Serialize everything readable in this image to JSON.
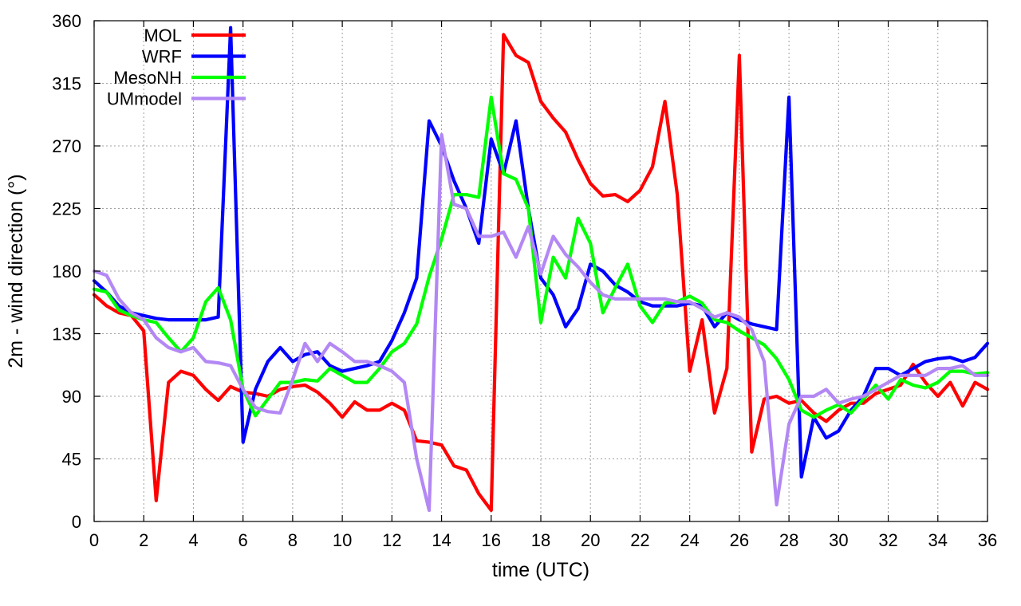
{
  "chart_data": {
    "type": "line",
    "xlabel": "time (UTC)",
    "ylabel": "2m - wind direction (°)",
    "xlim": [
      0,
      36
    ],
    "ylim": [
      0,
      360
    ],
    "xticks": [
      0,
      2,
      4,
      6,
      8,
      10,
      12,
      14,
      16,
      18,
      20,
      22,
      24,
      26,
      28,
      30,
      32,
      34,
      36
    ],
    "yticks": [
      0,
      45,
      90,
      135,
      180,
      225,
      270,
      315,
      360
    ],
    "grid": true,
    "legend_position": "top-left",
    "series": [
      {
        "name": "MOL",
        "color": "#ff0000",
        "x": [
          0,
          0.5,
          1,
          1.5,
          2,
          2.5,
          3,
          3.5,
          4,
          4.5,
          5,
          5.5,
          6,
          6.5,
          7,
          7.5,
          8,
          8.5,
          9,
          9.5,
          10,
          10.5,
          11,
          11.5,
          12,
          12.5,
          13,
          13.5,
          14,
          14.5,
          15,
          15.5,
          16,
          16.5,
          17,
          17.5,
          18,
          18.5,
          19,
          19.5,
          20,
          20.5,
          21,
          21.5,
          22,
          22.5,
          23,
          23.5,
          24,
          24.5,
          25,
          25.5,
          26,
          26.5,
          27,
          27.5,
          28,
          28.5,
          29,
          29.5,
          30,
          30.5,
          31,
          31.5,
          32,
          32.5,
          33,
          33.5,
          34,
          34.5,
          35,
          35.5,
          36
        ],
        "y": [
          163,
          155,
          150,
          148,
          137,
          15,
          100,
          108,
          105,
          95,
          87,
          97,
          93,
          92,
          90,
          95,
          97,
          98,
          93,
          85,
          75,
          86,
          80,
          80,
          85,
          80,
          58,
          57,
          55,
          40,
          37,
          20,
          8,
          350,
          335,
          330,
          302,
          290,
          280,
          260,
          243,
          234,
          235,
          230,
          238,
          255,
          302,
          235,
          108,
          145,
          78,
          110,
          335,
          50,
          88,
          90,
          85,
          87,
          78,
          72,
          80,
          85,
          85,
          92,
          95,
          98,
          113,
          100,
          90,
          100,
          83,
          100,
          95
        ]
      },
      {
        "name": "WRF",
        "color": "#0000ff",
        "x": [
          0,
          0.5,
          1,
          1.5,
          2,
          2.5,
          3,
          3.5,
          4,
          4.5,
          5,
          5.5,
          6,
          6.5,
          7,
          7.5,
          8,
          8.5,
          9,
          9.5,
          10,
          10.5,
          11,
          11.5,
          12,
          12.5,
          13,
          13.5,
          14,
          14.5,
          15,
          15.5,
          16,
          16.5,
          17,
          17.5,
          18,
          18.5,
          19,
          19.5,
          20,
          20.5,
          21,
          21.5,
          22,
          22.5,
          23,
          23.5,
          24,
          24.5,
          25,
          25.5,
          26,
          26.5,
          27,
          27.5,
          28,
          28.5,
          29,
          29.5,
          30,
          30.5,
          31,
          31.5,
          32,
          32.5,
          33,
          33.5,
          34,
          34.5,
          35,
          35.5,
          36
        ],
        "y": [
          173,
          165,
          155,
          150,
          148,
          146,
          145,
          145,
          145,
          145,
          147,
          355,
          57,
          95,
          115,
          125,
          115,
          120,
          122,
          112,
          108,
          110,
          112,
          115,
          130,
          150,
          175,
          288,
          270,
          245,
          225,
          200,
          275,
          250,
          288,
          225,
          175,
          163,
          140,
          153,
          185,
          180,
          170,
          165,
          158,
          155,
          155,
          155,
          157,
          155,
          140,
          150,
          145,
          142,
          140,
          138,
          305,
          32,
          75,
          60,
          65,
          80,
          90,
          110,
          110,
          105,
          110,
          115,
          117,
          118,
          115,
          118,
          128
        ]
      },
      {
        "name": "MesoNH",
        "color": "#00ff00",
        "x": [
          0,
          0.5,
          1,
          1.5,
          2,
          2.5,
          3,
          3.5,
          4,
          4.5,
          5,
          5.5,
          6,
          6.5,
          7,
          7.5,
          8,
          8.5,
          9,
          9.5,
          10,
          10.5,
          11,
          11.5,
          12,
          12.5,
          13,
          13.5,
          14,
          14.5,
          15,
          15.5,
          16,
          16.5,
          17,
          17.5,
          18,
          18.5,
          19,
          19.5,
          20,
          20.5,
          21,
          21.5,
          22,
          22.5,
          23,
          23.5,
          24,
          24.5,
          25,
          25.5,
          26,
          26.5,
          27,
          27.5,
          28,
          28.5,
          29,
          29.5,
          30,
          30.5,
          31,
          31.5,
          32,
          32.5,
          33,
          33.5,
          34,
          34.5,
          35,
          35.5,
          36
        ],
        "y": [
          167,
          165,
          152,
          148,
          145,
          143,
          132,
          122,
          132,
          158,
          168,
          145,
          95,
          76,
          88,
          100,
          100,
          102,
          101,
          110,
          105,
          100,
          100,
          110,
          122,
          128,
          142,
          176,
          203,
          235,
          235,
          233,
          305,
          250,
          246,
          225,
          143,
          190,
          175,
          218,
          200,
          150,
          168,
          185,
          155,
          143,
          157,
          158,
          162,
          157,
          145,
          143,
          137,
          132,
          127,
          117,
          102,
          80,
          75,
          80,
          84,
          78,
          88,
          98,
          88,
          102,
          98,
          96,
          100,
          108,
          108,
          106,
          107
        ]
      },
      {
        "name": "UMmodel",
        "color": "#b388f4",
        "x": [
          0,
          0.5,
          1,
          1.5,
          2,
          2.5,
          3,
          3.5,
          4,
          4.5,
          5,
          5.5,
          6,
          6.5,
          7,
          7.5,
          8,
          8.5,
          9,
          9.5,
          10,
          10.5,
          11,
          11.5,
          12,
          12.5,
          13,
          13.5,
          14,
          14.5,
          15,
          15.5,
          16,
          16.5,
          17,
          17.5,
          18,
          18.5,
          19,
          19.5,
          20,
          20.5,
          21,
          21.5,
          22,
          22.5,
          23,
          23.5,
          24,
          24.5,
          25,
          25.5,
          26,
          26.5,
          27,
          27.5,
          28,
          28.5,
          29,
          29.5,
          30,
          30.5,
          31,
          31.5,
          32,
          32.5,
          33,
          33.5,
          34,
          34.5,
          35,
          35.5,
          36
        ],
        "y": [
          180,
          177,
          160,
          150,
          145,
          132,
          125,
          122,
          125,
          115,
          114,
          112,
          95,
          82,
          79,
          78,
          102,
          128,
          115,
          128,
          122,
          115,
          115,
          112,
          108,
          100,
          45,
          8,
          278,
          228,
          225,
          205,
          205,
          208,
          190,
          212,
          178,
          205,
          192,
          183,
          172,
          163,
          160,
          160,
          160,
          160,
          160,
          158,
          158,
          153,
          147,
          150,
          147,
          138,
          115,
          12,
          70,
          90,
          90,
          95,
          85,
          88,
          90,
          95,
          100,
          105,
          105,
          105,
          110,
          110,
          112,
          105,
          105
        ]
      }
    ]
  }
}
